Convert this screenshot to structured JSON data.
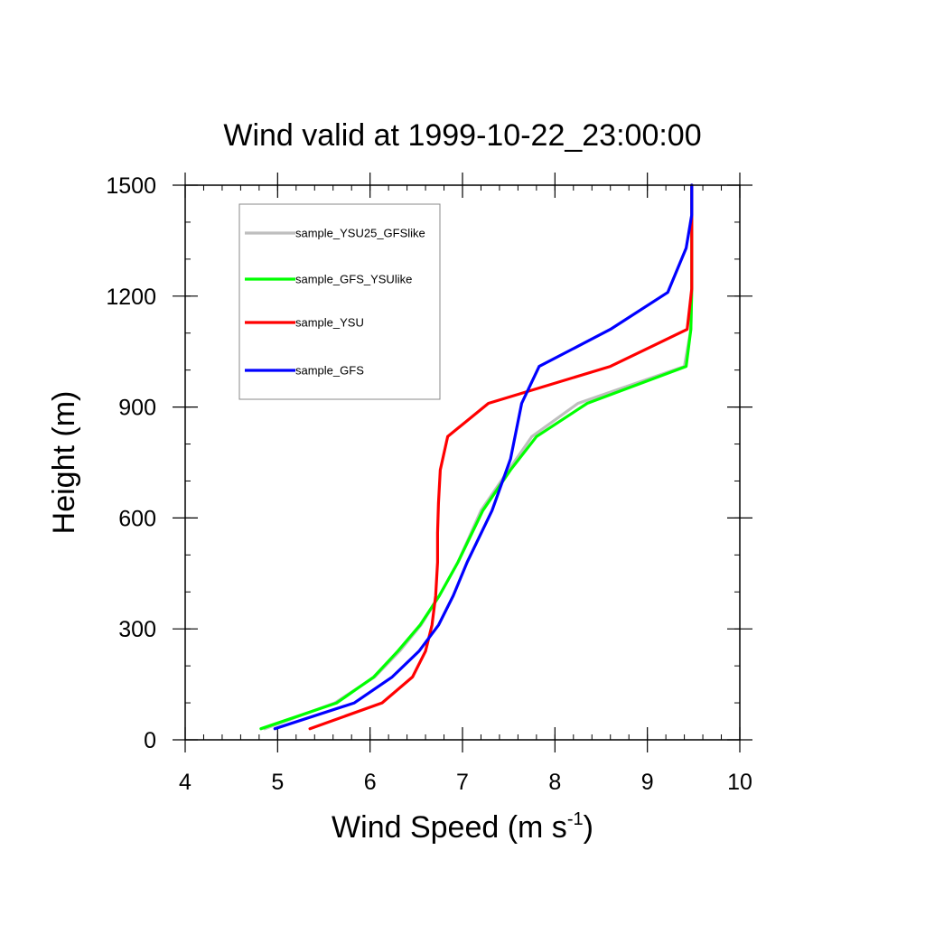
{
  "chart_data": {
    "type": "line",
    "title": "Wind valid at 1999-10-22_23:00:00",
    "xlabel": "Wind Speed (m s",
    "xlabel_sup": "-1",
    "xlabel_end": ")",
    "ylabel": "Height (m)",
    "xlim": [
      4,
      10
    ],
    "ylim": [
      0,
      1500
    ],
    "xticks": [
      4,
      5,
      6,
      7,
      8,
      9,
      10
    ],
    "yticks": [
      0,
      300,
      600,
      900,
      1200,
      1500
    ],
    "xtick_labels": [
      "4",
      "5",
      "6",
      "7",
      "8",
      "9",
      "10"
    ],
    "ytick_labels": [
      "0",
      "300",
      "600",
      "900",
      "1200",
      "1500"
    ],
    "legend_position": "top-left",
    "series": [
      {
        "name": "sample_YSU25_GFSlike",
        "color": "#bebebe",
        "x": [
          4.86,
          5.62,
          6.05,
          6.32,
          6.55,
          6.75,
          6.95,
          7.2,
          7.5,
          7.75,
          8.25,
          9.4,
          9.47,
          9.48,
          9.48
        ],
        "y": [
          30,
          100,
          170,
          240,
          310,
          390,
          480,
          620,
          730,
          820,
          910,
          1010,
          1110,
          1220,
          1500
        ]
      },
      {
        "name": "sample_GFS_YSUlike",
        "color": "#00ff00",
        "x": [
          4.82,
          5.64,
          6.04,
          6.3,
          6.54,
          6.75,
          6.95,
          7.22,
          7.52,
          7.8,
          8.35,
          9.42,
          9.47,
          9.48,
          9.48
        ],
        "y": [
          30,
          100,
          170,
          240,
          310,
          390,
          480,
          620,
          730,
          820,
          910,
          1010,
          1110,
          1220,
          1500
        ]
      },
      {
        "name": "sample_YSU",
        "color": "#ff0000",
        "x": [
          5.35,
          6.13,
          6.46,
          6.6,
          6.67,
          6.71,
          6.73,
          6.73,
          6.74,
          6.76,
          6.84,
          7.28,
          8.6,
          9.43,
          9.48,
          9.48
        ],
        "y": [
          30,
          100,
          170,
          240,
          310,
          390,
          480,
          560,
          640,
          730,
          820,
          910,
          1010,
          1110,
          1220,
          1500
        ]
      },
      {
        "name": "sample_GFS",
        "color": "#0000ff",
        "x": [
          4.97,
          5.83,
          6.24,
          6.53,
          6.74,
          6.9,
          7.05,
          7.32,
          7.52,
          7.64,
          7.83,
          8.6,
          9.22,
          9.42,
          9.48,
          9.48
        ],
        "y": [
          30,
          100,
          170,
          240,
          310,
          390,
          480,
          620,
          760,
          910,
          1010,
          1110,
          1210,
          1330,
          1420,
          1500
        ]
      }
    ]
  }
}
